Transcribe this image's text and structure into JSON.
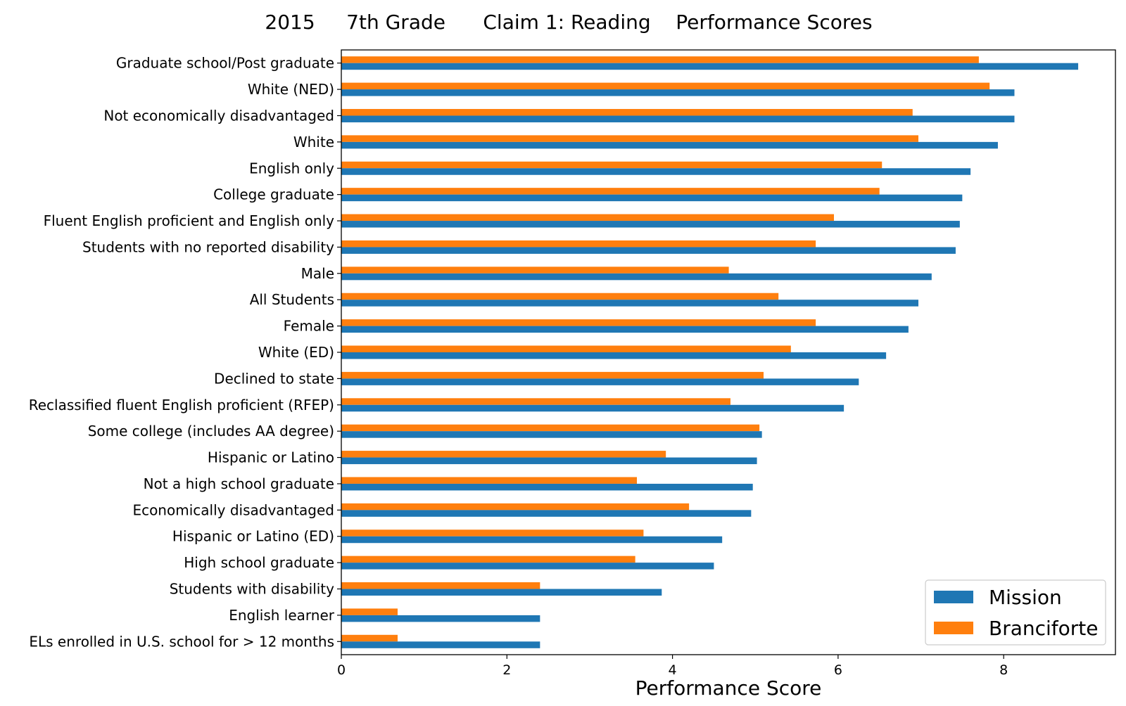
{
  "chart_data": {
    "type": "bar",
    "orientation": "horizontal",
    "title": "2015     7th Grade      Claim 1: Reading    Performance Scores",
    "xlabel": "Performance Score",
    "ylabel": "",
    "xlim": [
      0,
      9.35
    ],
    "xticks": [
      0,
      2,
      4,
      6,
      8
    ],
    "grid": false,
    "legend_position": "lower-right",
    "colors": {
      "Mission": "#1f77b4",
      "Branciforte": "#ff7f0e"
    },
    "categories": [
      "Graduate school/Post graduate",
      "White (NED)",
      "Not economically disadvantaged",
      "White",
      "English only",
      "College graduate",
      "Fluent English proficient and English only",
      "Students with no reported disability",
      "Male",
      "All Students",
      "Female",
      "White (ED)",
      "Declined to state",
      "Reclassified fluent English proficient (RFEP)",
      "Some college (includes AA degree)",
      "Hispanic or Latino",
      "Not a high school graduate",
      "Economically disadvantaged",
      "Hispanic or Latino (ED)",
      "High school graduate",
      "Students with disability",
      "English learner",
      "ELs enrolled in U.S. school for > 12 months"
    ],
    "series": [
      {
        "name": "Mission",
        "values": [
          8.9,
          8.13,
          8.13,
          7.93,
          7.6,
          7.5,
          7.47,
          7.42,
          7.13,
          6.97,
          6.85,
          6.58,
          6.25,
          6.07,
          5.08,
          5.02,
          4.97,
          4.95,
          4.6,
          4.5,
          3.87,
          2.4,
          2.4
        ]
      },
      {
        "name": "Branciforte",
        "values": [
          7.7,
          7.83,
          6.9,
          6.97,
          6.53,
          6.5,
          5.95,
          5.73,
          4.68,
          5.28,
          5.73,
          5.43,
          5.1,
          4.7,
          5.05,
          3.92,
          3.57,
          4.2,
          3.65,
          3.55,
          2.4,
          0.68,
          0.68
        ]
      }
    ]
  }
}
